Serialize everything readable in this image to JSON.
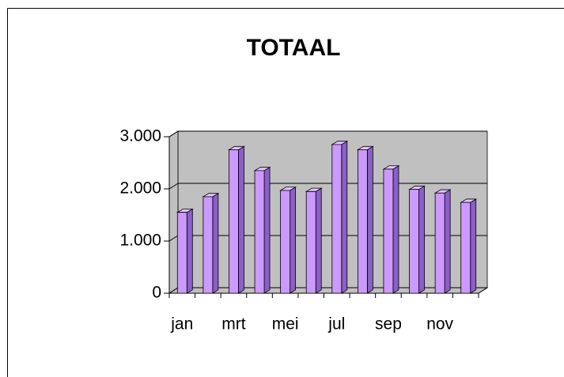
{
  "chart_data": {
    "type": "bar3d",
    "title": "TOTAAL",
    "categories": [
      "jan",
      null,
      "mrt",
      null,
      "mei",
      null,
      "jul",
      null,
      "sep",
      null,
      "nov",
      null
    ],
    "values": [
      1550,
      1850,
      2750,
      2350,
      1970,
      1950,
      2850,
      2750,
      2380,
      1990,
      1920,
      1740
    ],
    "color": "#cc99ff",
    "ylim": [
      0,
      3000
    ],
    "yticks": [
      0,
      {
        "value": 1000,
        "label": "1.000"
      },
      {
        "value": 2000,
        "label": "2.000"
      },
      {
        "value": 3000,
        "label": "3.000"
      }
    ],
    "grid": true
  }
}
